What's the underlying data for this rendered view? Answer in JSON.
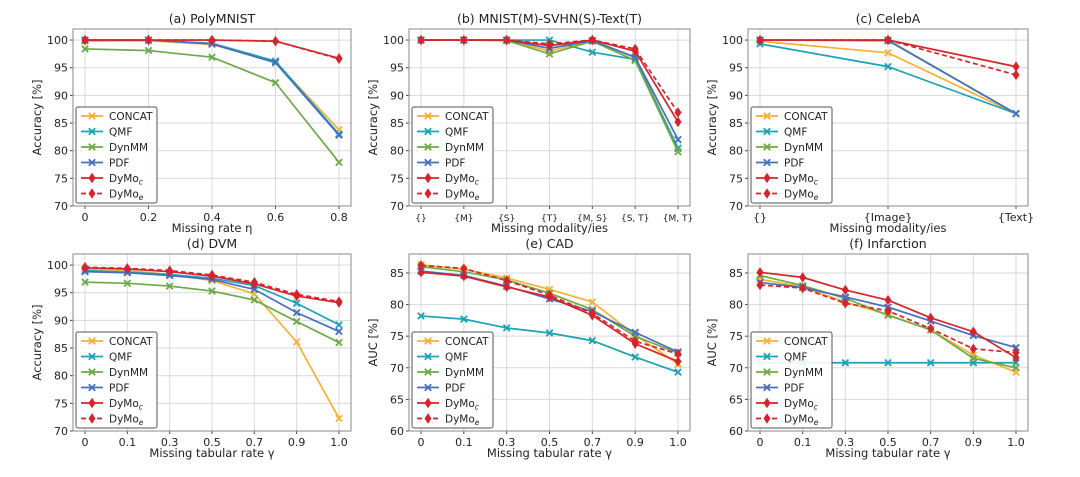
{
  "chart_data": [
    {
      "type": "line",
      "title": "(a) PolyMNIST",
      "xlabel": "Missing rate η",
      "ylabel": "Accuracy [%]",
      "categories": [
        "0",
        "0.2",
        "0.4",
        "0.6",
        "0.8"
      ],
      "ylim": [
        70,
        102
      ],
      "yticks": [
        70,
        75,
        80,
        85,
        90,
        95,
        100
      ],
      "grid": true,
      "legend": "lower-left",
      "series": [
        {
          "name": "CONCAT",
          "color": "#f8b133",
          "marker": "x",
          "dash": false,
          "values": [
            99.8,
            99.9,
            99.2,
            96.0,
            83.8
          ]
        },
        {
          "name": "QMF",
          "color": "#1aa3b4",
          "marker": "x",
          "dash": false,
          "values": [
            100,
            100,
            99.4,
            96.2,
            83.0
          ]
        },
        {
          "name": "DynMM",
          "color": "#6aab48",
          "marker": "x",
          "dash": false,
          "values": [
            98.4,
            98.1,
            96.9,
            92.3,
            77.9
          ]
        },
        {
          "name": "PDF",
          "color": "#4570c0",
          "marker": "x",
          "dash": false,
          "values": [
            100,
            100,
            99.3,
            95.9,
            82.8
          ]
        },
        {
          "name": "DyMo",
          "sub": "c",
          "color": "#d8232a",
          "marker": "diamond",
          "dash": false,
          "values": [
            100,
            100,
            100,
            99.8,
            96.7
          ]
        },
        {
          "name": "DyMo",
          "sub": "e",
          "color": "#d8232a",
          "marker": "diamond",
          "dash": true,
          "values": [
            100,
            100,
            100,
            99.8,
            96.6
          ]
        }
      ]
    },
    {
      "type": "line",
      "title": "(b) MNIST(M)-SVHN(S)-Text(T)",
      "xlabel": "Missing modality/ies",
      "ylabel": "Accuracy [%]",
      "categories": [
        "{}",
        "{M}",
        "{S}",
        "{T}",
        "{M, S}",
        "{S, T}",
        "{M, T}"
      ],
      "ylim": [
        70,
        102
      ],
      "yticks": [
        70,
        75,
        80,
        85,
        90,
        95,
        100
      ],
      "grid": true,
      "legend": "lower-left",
      "series": [
        {
          "name": "CONCAT",
          "color": "#f8b133",
          "marker": "x",
          "dash": false,
          "values": [
            100,
            100,
            100,
            98.0,
            99.9,
            96.8,
            80.5
          ]
        },
        {
          "name": "QMF",
          "color": "#1aa3b4",
          "marker": "x",
          "dash": false,
          "values": [
            100,
            100,
            100,
            100,
            97.8,
            96.5,
            80.4
          ]
        },
        {
          "name": "DynMM",
          "color": "#6aab48",
          "marker": "x",
          "dash": false,
          "values": [
            100,
            100,
            99.9,
            97.5,
            99.8,
            96.3,
            79.8
          ]
        },
        {
          "name": "PDF",
          "color": "#4570c0",
          "marker": "x",
          "dash": false,
          "values": [
            100,
            100,
            100,
            98.5,
            99.9,
            96.9,
            82.0
          ]
        },
        {
          "name": "DyMo",
          "sub": "c",
          "color": "#d8232a",
          "marker": "diamond",
          "dash": false,
          "values": [
            100,
            100,
            100,
            99.0,
            100,
            98.0,
            85.2
          ]
        },
        {
          "name": "DyMo",
          "sub": "e",
          "color": "#d8232a",
          "marker": "diamond",
          "dash": true,
          "values": [
            100,
            100,
            100,
            99.3,
            100,
            98.4,
            86.9
          ]
        }
      ]
    },
    {
      "type": "line",
      "title": "(c) CelebA",
      "xlabel": "Missing modality/ies",
      "ylabel": "Accuracy [%]",
      "categories": [
        "{}",
        "{Image}",
        "{Text}"
      ],
      "ylim": [
        70,
        102
      ],
      "yticks": [
        70,
        75,
        80,
        85,
        90,
        95,
        100
      ],
      "grid": true,
      "legend": "lower-left",
      "series": [
        {
          "name": "CONCAT",
          "color": "#f8b133",
          "marker": "x",
          "dash": false,
          "values": [
            99.8,
            97.7,
            86.7
          ]
        },
        {
          "name": "QMF",
          "color": "#1aa3b4",
          "marker": "x",
          "dash": false,
          "values": [
            99.3,
            95.2,
            86.7
          ]
        },
        {
          "name": "DynMM",
          "color": "#6aab48",
          "marker": "x",
          "dash": false,
          "values": [
            100,
            100,
            86.7
          ]
        },
        {
          "name": "PDF",
          "color": "#4570c0",
          "marker": "x",
          "dash": false,
          "values": [
            100,
            99.9,
            86.7
          ]
        },
        {
          "name": "DyMo",
          "sub": "c",
          "color": "#d8232a",
          "marker": "diamond",
          "dash": false,
          "values": [
            100,
            100,
            95.2
          ]
        },
        {
          "name": "DyMo",
          "sub": "e",
          "color": "#d8232a",
          "marker": "diamond",
          "dash": true,
          "values": [
            100,
            100,
            93.7
          ]
        }
      ]
    },
    {
      "type": "line",
      "title": "(d) DVM",
      "xlabel": "Missing tabular rate γ",
      "ylabel": "Accuracy [%]",
      "categories": [
        "0",
        "0.1",
        "0.3",
        "0.5",
        "0.7",
        "0.9",
        "1.0"
      ],
      "ylim": [
        70,
        102
      ],
      "yticks": [
        70,
        75,
        80,
        85,
        90,
        95,
        100
      ],
      "grid": true,
      "legend": "lower-left",
      "series": [
        {
          "name": "CONCAT",
          "color": "#f8b133",
          "marker": "x",
          "dash": false,
          "values": [
            99.3,
            99.0,
            98.3,
            97.2,
            94.8,
            86.1,
            72.3
          ]
        },
        {
          "name": "QMF",
          "color": "#1aa3b4",
          "marker": "x",
          "dash": false,
          "values": [
            99.0,
            98.7,
            98.3,
            97.6,
            96.3,
            93.1,
            89.2
          ]
        },
        {
          "name": "DynMM",
          "color": "#6aab48",
          "marker": "x",
          "dash": false,
          "values": [
            96.9,
            96.7,
            96.2,
            95.3,
            93.7,
            89.8,
            86.0
          ]
        },
        {
          "name": "PDF",
          "color": "#4570c0",
          "marker": "x",
          "dash": false,
          "values": [
            98.8,
            98.6,
            98.1,
            97.4,
            95.6,
            91.4,
            88.0
          ]
        },
        {
          "name": "DyMo",
          "sub": "c",
          "color": "#d8232a",
          "marker": "diamond",
          "dash": false,
          "values": [
            99.5,
            99.3,
            98.8,
            98.0,
            96.6,
            94.4,
            93.2
          ]
        },
        {
          "name": "DyMo",
          "sub": "e",
          "color": "#d8232a",
          "marker": "diamond",
          "dash": true,
          "values": [
            99.6,
            99.4,
            99.0,
            98.2,
            96.9,
            94.7,
            93.4
          ]
        }
      ]
    },
    {
      "type": "line",
      "title": "(e) CAD",
      "xlabel": "Missing tabular rate γ",
      "ylabel": "AUC [%]",
      "categories": [
        "0",
        "0.1",
        "0.3",
        "0.5",
        "0.7",
        "0.9",
        "1.0"
      ],
      "ylim": [
        60,
        88
      ],
      "yticks": [
        60,
        65,
        70,
        75,
        80,
        85
      ],
      "grid": true,
      "legend": "lower-left",
      "series": [
        {
          "name": "CONCAT",
          "color": "#f8b133",
          "marker": "x",
          "dash": false,
          "values": [
            86.3,
            85.6,
            84.2,
            82.4,
            80.4,
            75.2,
            70.6
          ]
        },
        {
          "name": "QMF",
          "color": "#1aa3b4",
          "marker": "x",
          "dash": false,
          "values": [
            78.2,
            77.7,
            76.3,
            75.5,
            74.3,
            71.7,
            69.3
          ]
        },
        {
          "name": "DynMM",
          "color": "#6aab48",
          "marker": "x",
          "dash": false,
          "values": [
            86.0,
            85.2,
            83.9,
            81.8,
            79.2,
            75.0,
            72.3
          ]
        },
        {
          "name": "PDF",
          "color": "#4570c0",
          "marker": "x",
          "dash": false,
          "values": [
            85.3,
            84.6,
            82.9,
            80.9,
            78.9,
            75.6,
            72.5
          ]
        },
        {
          "name": "DyMo",
          "sub": "c",
          "color": "#d8232a",
          "marker": "diamond",
          "dash": false,
          "values": [
            85.1,
            84.5,
            82.8,
            81.2,
            78.3,
            73.8,
            71.0
          ]
        },
        {
          "name": "DyMo",
          "sub": "e",
          "color": "#d8232a",
          "marker": "diamond",
          "dash": true,
          "values": [
            86.2,
            85.7,
            83.8,
            81.5,
            78.6,
            74.2,
            72.2
          ]
        }
      ]
    },
    {
      "type": "line",
      "title": "(f) Infarction",
      "xlabel": "Missing tabular rate γ",
      "ylabel": "AUC [%]",
      "categories": [
        "0",
        "0.1",
        "0.3",
        "0.5",
        "0.7",
        "0.9",
        "1.0"
      ],
      "ylim": [
        60,
        88
      ],
      "yticks": [
        60,
        65,
        70,
        75,
        80,
        85
      ],
      "grid": true,
      "legend": "lower-left",
      "series": [
        {
          "name": "CONCAT",
          "color": "#f8b133",
          "marker": "x",
          "dash": false,
          "values": [
            84.0,
            82.8,
            80.4,
            78.4,
            76.0,
            72.0,
            69.3
          ]
        },
        {
          "name": "QMF",
          "color": "#1aa3b4",
          "marker": "x",
          "dash": false,
          "values": [
            70.8,
            70.8,
            70.8,
            70.8,
            70.8,
            70.8,
            70.8
          ]
        },
        {
          "name": "DynMM",
          "color": "#6aab48",
          "marker": "x",
          "dash": false,
          "values": [
            84.6,
            83.0,
            81.0,
            78.3,
            76.0,
            71.5,
            70.0
          ]
        },
        {
          "name": "PDF",
          "color": "#4570c0",
          "marker": "x",
          "dash": false,
          "values": [
            83.5,
            82.7,
            81.2,
            79.6,
            77.4,
            75.1,
            73.2
          ]
        },
        {
          "name": "DyMo",
          "sub": "c",
          "color": "#d8232a",
          "marker": "diamond",
          "dash": false,
          "values": [
            85.1,
            84.3,
            82.3,
            80.7,
            77.9,
            75.7,
            71.6
          ]
        },
        {
          "name": "DyMo",
          "sub": "e",
          "color": "#d8232a",
          "marker": "diamond",
          "dash": true,
          "values": [
            83.1,
            82.6,
            80.2,
            79.0,
            76.2,
            73.0,
            72.4
          ]
        }
      ]
    }
  ]
}
